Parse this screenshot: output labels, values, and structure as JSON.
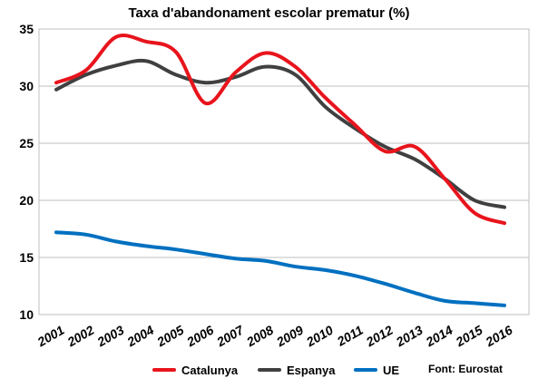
{
  "chart_data": {
    "type": "line",
    "title": "Taxa d'abandonament escolar prematur (%)",
    "xlabel": "",
    "ylabel": "",
    "categories": [
      "2001",
      "2002",
      "2003",
      "2004",
      "2005",
      "2006",
      "2007",
      "2008",
      "2009",
      "2010",
      "2011",
      "2012",
      "2013",
      "2014",
      "2015",
      "2016"
    ],
    "ylim": [
      10,
      35
    ],
    "yticks": [
      10,
      15,
      20,
      25,
      30,
      35
    ],
    "grid": true,
    "legend_position": "bottom",
    "series": [
      {
        "name": "Catalunya",
        "color": "#e8141c",
        "values": [
          30.3,
          31.4,
          34.3,
          33.9,
          33.0,
          28.5,
          31.2,
          32.9,
          31.7,
          29.0,
          26.6,
          24.3,
          24.7,
          21.9,
          18.9,
          18.0
        ]
      },
      {
        "name": "Espanya",
        "color": "#404040",
        "values": [
          29.7,
          31.0,
          31.8,
          32.2,
          31.0,
          30.3,
          30.8,
          31.7,
          31.0,
          28.2,
          26.3,
          24.7,
          23.6,
          21.9,
          20.0,
          19.4
        ]
      },
      {
        "name": "UE",
        "color": "#0070c0",
        "values": [
          17.2,
          17.0,
          16.4,
          16.0,
          15.7,
          15.3,
          14.9,
          14.7,
          14.2,
          13.9,
          13.4,
          12.7,
          11.9,
          11.2,
          11.0,
          10.8
        ]
      }
    ],
    "source": "Font: Eurostat"
  }
}
